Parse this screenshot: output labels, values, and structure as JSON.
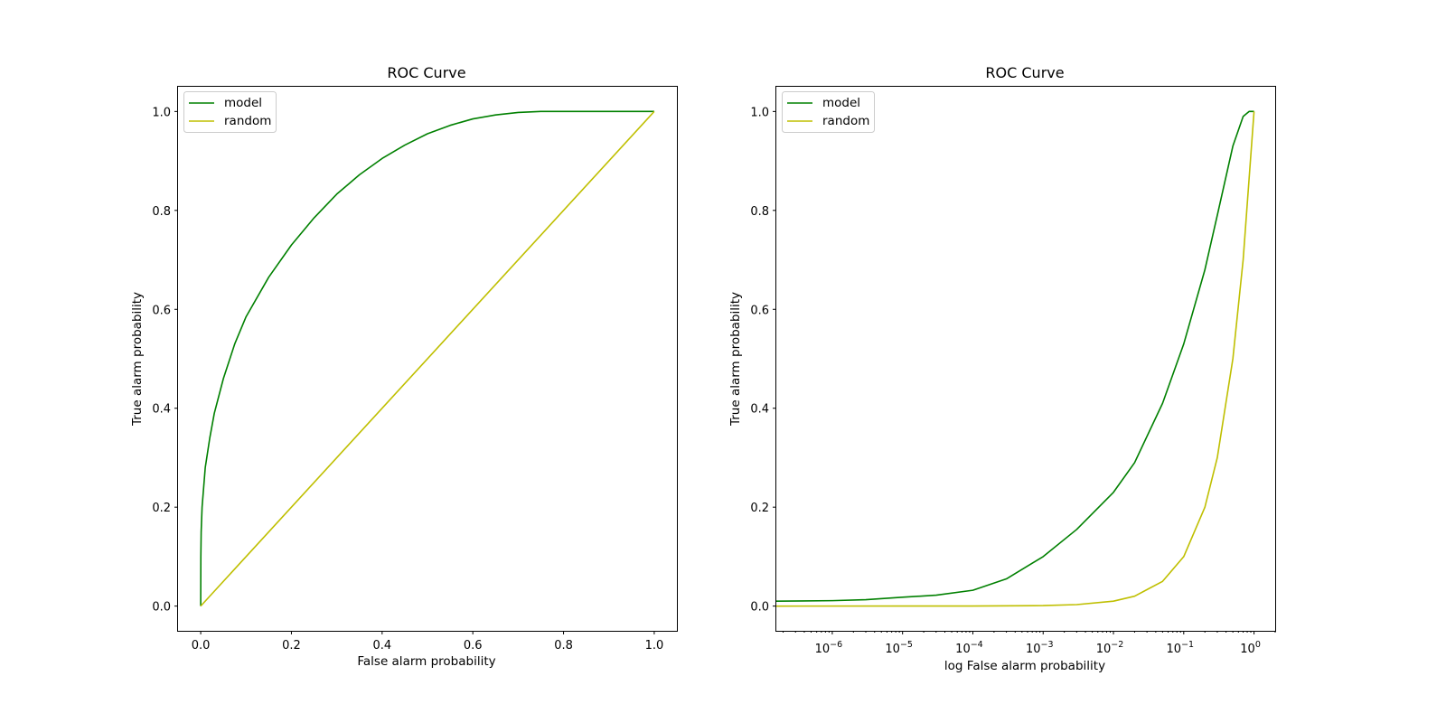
{
  "chart_data": [
    {
      "type": "line",
      "title": "ROC Curve",
      "xlabel": "False alarm probability",
      "ylabel": "True alarm probability",
      "xscale": "linear",
      "xlim": [
        -0.05,
        1.05
      ],
      "ylim": [
        -0.05,
        1.05
      ],
      "xticks": [
        0.0,
        0.2,
        0.4,
        0.6,
        0.8,
        1.0
      ],
      "xtick_labels": [
        "0.0",
        "0.2",
        "0.4",
        "0.6",
        "0.8",
        "1.0"
      ],
      "yticks": [
        0.0,
        0.2,
        0.4,
        0.6,
        0.8,
        1.0
      ],
      "ytick_labels": [
        "0.0",
        "0.2",
        "0.4",
        "0.6",
        "0.8",
        "1.0"
      ],
      "grid": false,
      "legend_position": "upper-left",
      "series": [
        {
          "name": "model",
          "color": "#008000",
          "x": [
            0.0,
            0.0003,
            0.001,
            0.003,
            0.01,
            0.02,
            0.03,
            0.05,
            0.075,
            0.1,
            0.15,
            0.2,
            0.25,
            0.3,
            0.35,
            0.4,
            0.45,
            0.5,
            0.55,
            0.6,
            0.65,
            0.7,
            0.75,
            0.8,
            0.85,
            0.9,
            0.95,
            1.0
          ],
          "y": [
            0.0,
            0.1,
            0.15,
            0.2,
            0.28,
            0.34,
            0.39,
            0.46,
            0.53,
            0.585,
            0.665,
            0.73,
            0.785,
            0.833,
            0.872,
            0.905,
            0.932,
            0.955,
            0.972,
            0.985,
            0.993,
            0.998,
            1.0,
            1.0,
            1.0,
            1.0,
            1.0,
            1.0
          ]
        },
        {
          "name": "random",
          "color": "#bfbf00",
          "x": [
            0.0,
            1.0
          ],
          "y": [
            0.0,
            1.0
          ]
        }
      ]
    },
    {
      "type": "line",
      "title": "ROC Curve",
      "xlabel": "log False alarm probability",
      "ylabel": "True alarm probability",
      "xscale": "log",
      "xlim": [
        1.6e-07,
        2.0
      ],
      "ylim": [
        -0.05,
        1.05
      ],
      "xticks": [
        1e-06,
        1e-05,
        0.0001,
        0.001,
        0.01,
        0.1,
        1
      ],
      "xtick_labels": [
        {
          "base": "10",
          "exp": "−6"
        },
        {
          "base": "10",
          "exp": "−5"
        },
        {
          "base": "10",
          "exp": "−4"
        },
        {
          "base": "10",
          "exp": "−3"
        },
        {
          "base": "10",
          "exp": "−2"
        },
        {
          "base": "10",
          "exp": "−1"
        },
        {
          "base": "10",
          "exp": "0"
        }
      ],
      "yticks": [
        0.0,
        0.2,
        0.4,
        0.6,
        0.8,
        1.0
      ],
      "ytick_labels": [
        "0.0",
        "0.2",
        "0.4",
        "0.6",
        "0.8",
        "1.0"
      ],
      "grid": false,
      "legend_position": "upper-left",
      "series": [
        {
          "name": "model",
          "color": "#008000",
          "x": [
            1.6e-07,
            1e-06,
            3e-06,
            1e-05,
            3e-05,
            0.0001,
            0.0003,
            0.001,
            0.003,
            0.01,
            0.02,
            0.05,
            0.1,
            0.2,
            0.3,
            0.5,
            0.7,
            0.85,
            1.0
          ],
          "y": [
            0.01,
            0.011,
            0.013,
            0.018,
            0.022,
            0.032,
            0.055,
            0.1,
            0.155,
            0.23,
            0.29,
            0.41,
            0.53,
            0.68,
            0.79,
            0.93,
            0.99,
            1.0,
            1.0
          ]
        },
        {
          "name": "random",
          "color": "#bfbf00",
          "x": [
            1.6e-07,
            0.0001,
            0.001,
            0.003,
            0.01,
            0.02,
            0.05,
            0.1,
            0.2,
            0.3,
            0.5,
            0.7,
            1.0
          ],
          "y": [
            0.0,
            0.0001,
            0.001,
            0.003,
            0.01,
            0.02,
            0.05,
            0.1,
            0.2,
            0.3,
            0.5,
            0.7,
            1.0
          ]
        }
      ]
    }
  ]
}
